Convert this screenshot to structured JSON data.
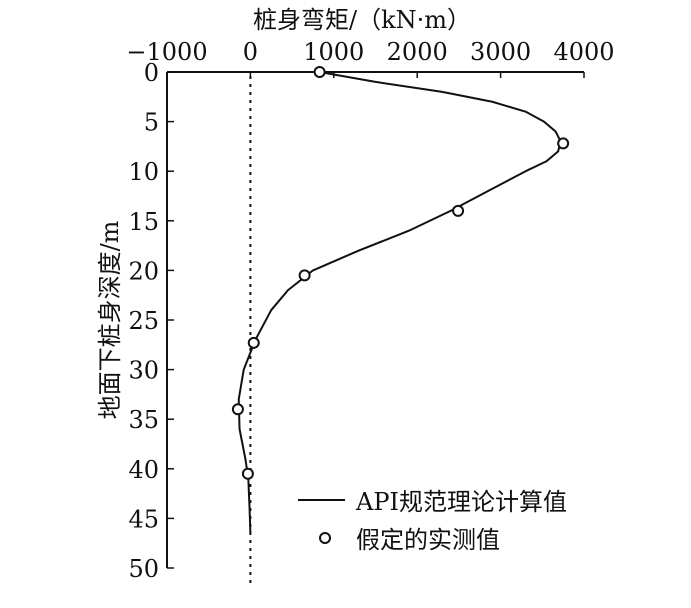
{
  "chart_data": {
    "type": "line",
    "title": "",
    "xlabel": "桩身弯矩/（kN·m）",
    "ylabel": "地面下桩身深度/m",
    "xlim": [
      -1000,
      4000
    ],
    "ylim": [
      0,
      50
    ],
    "x_ticks": [
      "-1000",
      "0",
      "1000",
      "2000",
      "3000",
      "4000"
    ],
    "x_tick_values": [
      -1000,
      0,
      1000,
      2000,
      3000,
      4000
    ],
    "y_ticks": [
      "0",
      "5",
      "10",
      "15",
      "20",
      "25",
      "30",
      "35",
      "40",
      "45",
      "50"
    ],
    "y_tick_values": [
      0,
      5,
      10,
      15,
      20,
      25,
      30,
      35,
      40,
      45,
      50
    ],
    "legend_position": "bottom-right",
    "reference_line": {
      "x": 0,
      "style": "dotted"
    },
    "series": [
      {
        "name": "API规范理论计算值",
        "style": "line",
        "points": [
          [
            830,
            0
          ],
          [
            1500,
            1
          ],
          [
            2300,
            2
          ],
          [
            2900,
            3
          ],
          [
            3300,
            4
          ],
          [
            3520,
            5
          ],
          [
            3660,
            6
          ],
          [
            3720,
            7
          ],
          [
            3690,
            8
          ],
          [
            3550,
            9
          ],
          [
            3300,
            10
          ],
          [
            2850,
            12
          ],
          [
            2400,
            14
          ],
          [
            1900,
            16
          ],
          [
            1300,
            18
          ],
          [
            750,
            20
          ],
          [
            450,
            22
          ],
          [
            250,
            24
          ],
          [
            60,
            27
          ],
          [
            -80,
            30
          ],
          [
            -140,
            33
          ],
          [
            -130,
            36
          ],
          [
            -60,
            39
          ],
          [
            -25,
            41
          ],
          [
            -10,
            44
          ],
          [
            0,
            46.5
          ]
        ]
      },
      {
        "name": "假定的实测值",
        "style": "marker-circle",
        "points": [
          [
            830,
            0
          ],
          [
            3750,
            7.2
          ],
          [
            2490,
            14
          ],
          [
            650,
            20.5
          ],
          [
            40,
            27.3
          ],
          [
            -150,
            34
          ],
          [
            -30,
            40.5
          ]
        ]
      }
    ]
  }
}
